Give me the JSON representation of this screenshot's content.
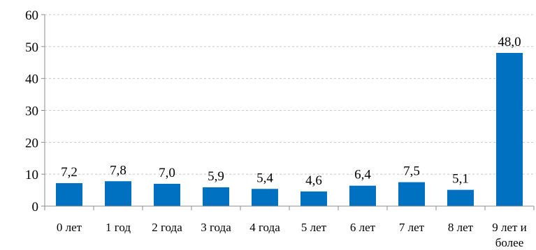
{
  "chart_data": {
    "type": "bar",
    "categories": [
      "0 лет",
      "1 год",
      "2 года",
      "3 года",
      "4 года",
      "5 лет",
      "6 лет",
      "7 лет",
      "8 лет",
      "9 лет и более"
    ],
    "category_lines": [
      [
        "0 лет"
      ],
      [
        "1 год"
      ],
      [
        "2 года"
      ],
      [
        "3 года"
      ],
      [
        "4 года"
      ],
      [
        "5 лет"
      ],
      [
        "6 лет"
      ],
      [
        "7 лет"
      ],
      [
        "8 лет"
      ],
      [
        "9 лет и",
        "более"
      ]
    ],
    "values": [
      7.2,
      7.8,
      7.0,
      5.9,
      5.4,
      4.6,
      6.4,
      7.5,
      5.1,
      48.0
    ],
    "value_labels": [
      "7,2",
      "7,8",
      "7,0",
      "5,9",
      "5,4",
      "4,6",
      "6,4",
      "7,5",
      "5,1",
      "48,0"
    ],
    "yticks": [
      0,
      10,
      20,
      30,
      40,
      50,
      60
    ],
    "ylim": [
      0,
      60
    ],
    "grid": true,
    "legend": "none",
    "bar_color": "#0070C0",
    "title": "",
    "xlabel": "",
    "ylabel": ""
  }
}
